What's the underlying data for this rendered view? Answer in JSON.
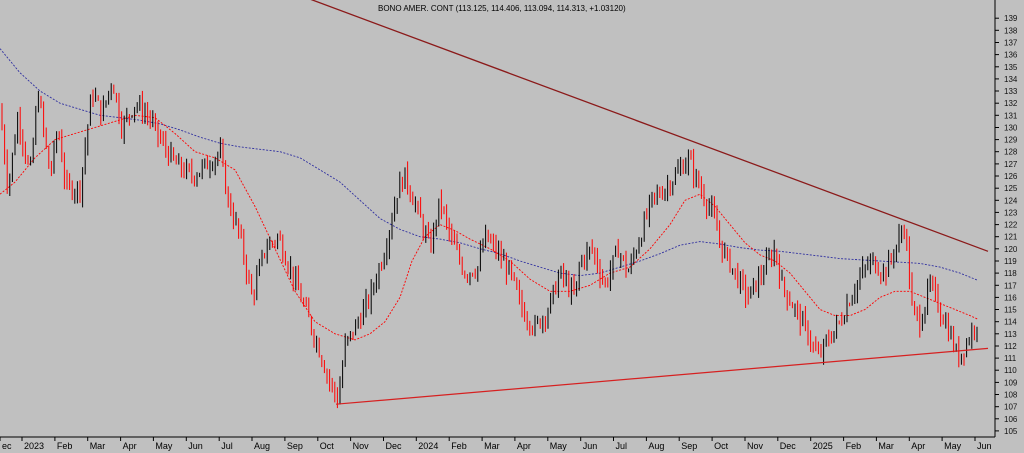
{
  "chart_data": {
    "type": "candlestick",
    "title": "BONO AMER. CONT (113.125, 114.406, 113.094, 114.313, +1.03120)",
    "ylim": [
      104.5,
      140.5
    ],
    "y_ticks": [
      105,
      106,
      107,
      108,
      109,
      110,
      111,
      112,
      113,
      114,
      115,
      116,
      117,
      118,
      119,
      120,
      121,
      122,
      123,
      124,
      125,
      126,
      127,
      128,
      129,
      130,
      131,
      132,
      133,
      134,
      135,
      136,
      137,
      138,
      139
    ],
    "x_labels": [
      "ec",
      "2023",
      "Feb",
      "Mar",
      "Apr",
      "May",
      "Jun",
      "Jul",
      "Aug",
      "Sep",
      "Oct",
      "Nov",
      "Dec",
      "2024",
      "Feb",
      "Mar",
      "Apr",
      "May",
      "Jun",
      "Jul",
      "Aug",
      "Sep",
      "Oct",
      "Nov",
      "Dec",
      "2025",
      "Feb",
      "Mar",
      "Apr",
      "May",
      "Jun"
    ],
    "price_anchors": [
      [
        0,
        131.5
      ],
      [
        8,
        125
      ],
      [
        18,
        131
      ],
      [
        30,
        126
      ],
      [
        38,
        133
      ],
      [
        50,
        126
      ],
      [
        58,
        130
      ],
      [
        66,
        125
      ],
      [
        80,
        125
      ],
      [
        92,
        133
      ],
      [
        102,
        131
      ],
      [
        112,
        134
      ],
      [
        122,
        130
      ],
      [
        135,
        132
      ],
      [
        148,
        131
      ],
      [
        160,
        129
      ],
      [
        175,
        127
      ],
      [
        192,
        126
      ],
      [
        208,
        127
      ],
      [
        220,
        128
      ],
      [
        228,
        124
      ],
      [
        240,
        121
      ],
      [
        252,
        116
      ],
      [
        265,
        120
      ],
      [
        278,
        121
      ],
      [
        292,
        118
      ],
      [
        305,
        115
      ],
      [
        318,
        112
      ],
      [
        330,
        109
      ],
      [
        338,
        107.5
      ],
      [
        345,
        112
      ],
      [
        355,
        113.5
      ],
      [
        370,
        116
      ],
      [
        385,
        120
      ],
      [
        398,
        125
      ],
      [
        405,
        126
      ],
      [
        418,
        123
      ],
      [
        430,
        120
      ],
      [
        440,
        124
      ],
      [
        450,
        121
      ],
      [
        465,
        118
      ],
      [
        478,
        118.5
      ],
      [
        485,
        121
      ],
      [
        495,
        120
      ],
      [
        510,
        118
      ],
      [
        522,
        115
      ],
      [
        535,
        113.5
      ],
      [
        548,
        115
      ],
      [
        560,
        118
      ],
      [
        575,
        116
      ],
      [
        580,
        119
      ],
      [
        592,
        120
      ],
      [
        605,
        117
      ],
      [
        618,
        120
      ],
      [
        628,
        118
      ],
      [
        640,
        121
      ],
      [
        652,
        124
      ],
      [
        665,
        125
      ],
      [
        675,
        126
      ],
      [
        688,
        127.5
      ],
      [
        700,
        125
      ],
      [
        712,
        123
      ],
      [
        722,
        120
      ],
      [
        735,
        118
      ],
      [
        748,
        116
      ],
      [
        762,
        118
      ],
      [
        775,
        120
      ],
      [
        782,
        117
      ],
      [
        795,
        115
      ],
      [
        808,
        113
      ],
      [
        818,
        111
      ],
      [
        828,
        112.5
      ],
      [
        840,
        114
      ],
      [
        850,
        116
      ],
      [
        862,
        118
      ],
      [
        872,
        119
      ],
      [
        885,
        118
      ],
      [
        895,
        120
      ],
      [
        905,
        122
      ],
      [
        912,
        115
      ],
      [
        920,
        114
      ],
      [
        930,
        117
      ],
      [
        940,
        115
      ],
      [
        950,
        113
      ],
      [
        958,
        111
      ],
      [
        968,
        112.5
      ],
      [
        978,
        114.3
      ]
    ],
    "ma_short": [
      [
        0,
        124.5
      ],
      [
        15,
        125.5
      ],
      [
        35,
        127.5
      ],
      [
        55,
        129
      ],
      [
        75,
        129.5
      ],
      [
        95,
        130
      ],
      [
        115,
        130.5
      ],
      [
        135,
        131
      ],
      [
        155,
        130.8
      ],
      [
        175,
        129.5
      ],
      [
        195,
        128
      ],
      [
        215,
        127.5
      ],
      [
        235,
        126.5
      ],
      [
        255,
        123.5
      ],
      [
        275,
        120
      ],
      [
        295,
        116.5
      ],
      [
        315,
        114
      ],
      [
        335,
        113
      ],
      [
        355,
        112.5
      ],
      [
        370,
        113
      ],
      [
        385,
        114
      ],
      [
        400,
        116
      ],
      [
        412,
        119
      ],
      [
        425,
        121
      ],
      [
        440,
        122
      ],
      [
        455,
        121.5
      ],
      [
        470,
        120.8
      ],
      [
        490,
        120
      ],
      [
        510,
        119
      ],
      [
        530,
        117.5
      ],
      [
        550,
        116.5
      ],
      [
        570,
        116.5
      ],
      [
        590,
        117
      ],
      [
        610,
        118
      ],
      [
        630,
        118.5
      ],
      [
        650,
        120
      ],
      [
        670,
        122
      ],
      [
        685,
        124
      ],
      [
        700,
        124.5
      ],
      [
        715,
        123.5
      ],
      [
        730,
        122
      ],
      [
        745,
        120.5
      ],
      [
        760,
        119.5
      ],
      [
        775,
        119
      ],
      [
        790,
        118
      ],
      [
        805,
        116.5
      ],
      [
        820,
        115
      ],
      [
        835,
        114.5
      ],
      [
        850,
        114.5
      ],
      [
        865,
        115
      ],
      [
        880,
        116
      ],
      [
        895,
        116.5
      ],
      [
        910,
        116.5
      ],
      [
        925,
        116
      ],
      [
        940,
        115.5
      ],
      [
        955,
        115
      ],
      [
        970,
        114.5
      ],
      [
        978,
        114.2
      ]
    ],
    "ma_long": [
      [
        0,
        136.5
      ],
      [
        20,
        134.5
      ],
      [
        40,
        133
      ],
      [
        60,
        132
      ],
      [
        80,
        131.5
      ],
      [
        100,
        131
      ],
      [
        120,
        130.8
      ],
      [
        140,
        130.6
      ],
      [
        160,
        130.3
      ],
      [
        180,
        129.8
      ],
      [
        200,
        129.2
      ],
      [
        220,
        128.7
      ],
      [
        240,
        128.4
      ],
      [
        260,
        128.2
      ],
      [
        280,
        128
      ],
      [
        300,
        127.5
      ],
      [
        320,
        126.5
      ],
      [
        340,
        125.5
      ],
      [
        360,
        124
      ],
      [
        380,
        122.5
      ],
      [
        400,
        121.6
      ],
      [
        420,
        121
      ],
      [
        440,
        120.8
      ],
      [
        460,
        120.5
      ],
      [
        480,
        120
      ],
      [
        500,
        119.6
      ],
      [
        520,
        119
      ],
      [
        540,
        118.5
      ],
      [
        560,
        118
      ],
      [
        580,
        117.8
      ],
      [
        600,
        118
      ],
      [
        620,
        118.5
      ],
      [
        640,
        119
      ],
      [
        660,
        119.6
      ],
      [
        680,
        120.3
      ],
      [
        700,
        120.6
      ],
      [
        720,
        120.4
      ],
      [
        740,
        120.1
      ],
      [
        760,
        119.9
      ],
      [
        780,
        119.8
      ],
      [
        800,
        119.6
      ],
      [
        820,
        119.4
      ],
      [
        840,
        119.2
      ],
      [
        860,
        119.1
      ],
      [
        880,
        119
      ],
      [
        900,
        118.9
      ],
      [
        920,
        118.8
      ],
      [
        940,
        118.5
      ],
      [
        960,
        118
      ],
      [
        978,
        117.4
      ]
    ],
    "trendline_top": {
      "from": [
        296,
        141
      ],
      "to": [
        988,
        119.8
      ],
      "color": "#8b1a1a"
    },
    "trendline_bottom": {
      "from": [
        336,
        107.2
      ],
      "to": [
        988,
        111.8
      ],
      "color": "#d62020"
    },
    "colors": {
      "background": "#c0c0c0",
      "bull": "#000000",
      "bear": "#ff0000",
      "ma_short": "#ff0000",
      "ma_long": "#3030a0",
      "axis": "#000000"
    }
  }
}
